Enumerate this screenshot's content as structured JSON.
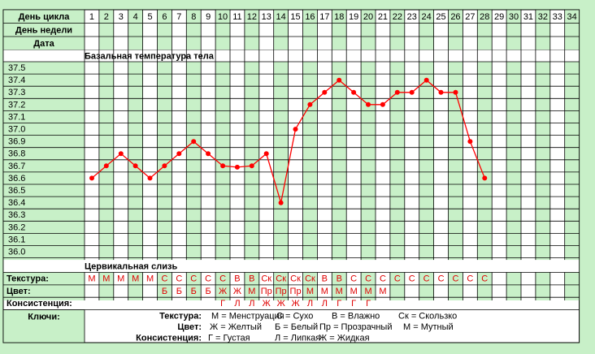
{
  "header": {
    "cycle_day_label": "День цикла",
    "weekday_label": "День недели",
    "date_label": "Дата",
    "days": [
      "1",
      "2",
      "3",
      "4",
      "5",
      "6",
      "7",
      "8",
      "9",
      "10",
      "11",
      "12",
      "13",
      "14",
      "15",
      "16",
      "17",
      "18",
      "19",
      "20",
      "21",
      "22",
      "23",
      "24",
      "25",
      "26",
      "27",
      "28",
      "29",
      "30",
      "31",
      "32",
      "33",
      "34"
    ]
  },
  "section_bbt": "Базальная температура тела",
  "section_mucus": "Цервикальная слизь",
  "chart_data": {
    "type": "line",
    "title": "Базальная температура тела",
    "xlabel": "День цикла",
    "ylabel": "",
    "x": [
      1,
      2,
      3,
      4,
      5,
      6,
      7,
      8,
      9,
      10,
      11,
      12,
      13,
      14,
      15,
      16,
      17,
      18,
      19,
      20,
      21,
      22,
      23,
      24,
      25,
      26,
      27,
      28
    ],
    "series": [
      {
        "values": [
          36.6,
          36.7,
          36.8,
          36.7,
          36.6,
          36.7,
          36.8,
          36.9,
          36.8,
          36.7,
          36.69,
          36.7,
          36.8,
          36.4,
          37.0,
          37.2,
          37.3,
          37.4,
          37.3,
          37.2,
          37.2,
          37.3,
          37.3,
          37.4,
          37.3,
          37.3,
          36.9,
          36.6
        ]
      }
    ],
    "y_ticks": [
      "37.5",
      "37.4",
      "37.3",
      "37.2",
      "37.1",
      "37.0",
      "36.9",
      "36.8",
      "36.7",
      "36.6",
      "36.5",
      "36.4",
      "36.3",
      "36.2",
      "36.1",
      "36.0"
    ],
    "ylim": [
      36.0,
      37.5
    ],
    "x_range": [
      1,
      34
    ],
    "grid": true,
    "line_color": "#ff0000"
  },
  "mucus": {
    "texture_label": "Текстура:",
    "color_label": "Цвет:",
    "consistency_label": "Консистенция:",
    "texture": [
      "М",
      "М",
      "М",
      "М",
      "М",
      "С",
      "С",
      "С",
      "С",
      "С",
      "В",
      "В",
      "Ск",
      "Ск",
      "Ск",
      "Ск",
      "В",
      "В",
      "С",
      "С",
      "С",
      "С",
      "С",
      "С",
      "С",
      "С",
      "С",
      "С"
    ],
    "color": [
      "",
      "",
      "",
      "",
      "",
      "Б",
      "Б",
      "Б",
      "Б",
      "Ж",
      "Ж",
      "М",
      "Пр",
      "Пр",
      "Пр",
      "М",
      "М",
      "М",
      "М",
      "М",
      "М",
      "",
      "",
      "",
      "",
      "",
      "",
      ""
    ],
    "consistency": [
      "",
      "",
      "",
      "",
      "",
      "",
      "",
      "",
      "",
      "Г",
      "Л",
      "Л",
      "Ж",
      "Ж",
      "Ж",
      "Л",
      "Л",
      "Г",
      "Г",
      "Г",
      "",
      "",
      "",
      "",
      "",
      "",
      "",
      ""
    ]
  },
  "keys": {
    "label": "Ключи:",
    "texture_label": "Текстура:",
    "texture_items": [
      "М = Менструация",
      "С = Сухо",
      "В = Влажно",
      "Ск = Скользко"
    ],
    "color_label": "Цвет:",
    "color_items": [
      "Ж = Желтый",
      "Б = Белый",
      "Пр = Прозрачный",
      "М = Мутный"
    ],
    "consistency_label": "Консистенция:",
    "consistency_items": [
      "Г = Густая",
      "Л = Липкая",
      "Ж = Жидкая"
    ]
  },
  "colors": {
    "background": "#c8f0c8",
    "cell_light": "#ffffff",
    "cell_green": "#c8f0c8",
    "grid": "#000000",
    "series": "#ff0000"
  }
}
